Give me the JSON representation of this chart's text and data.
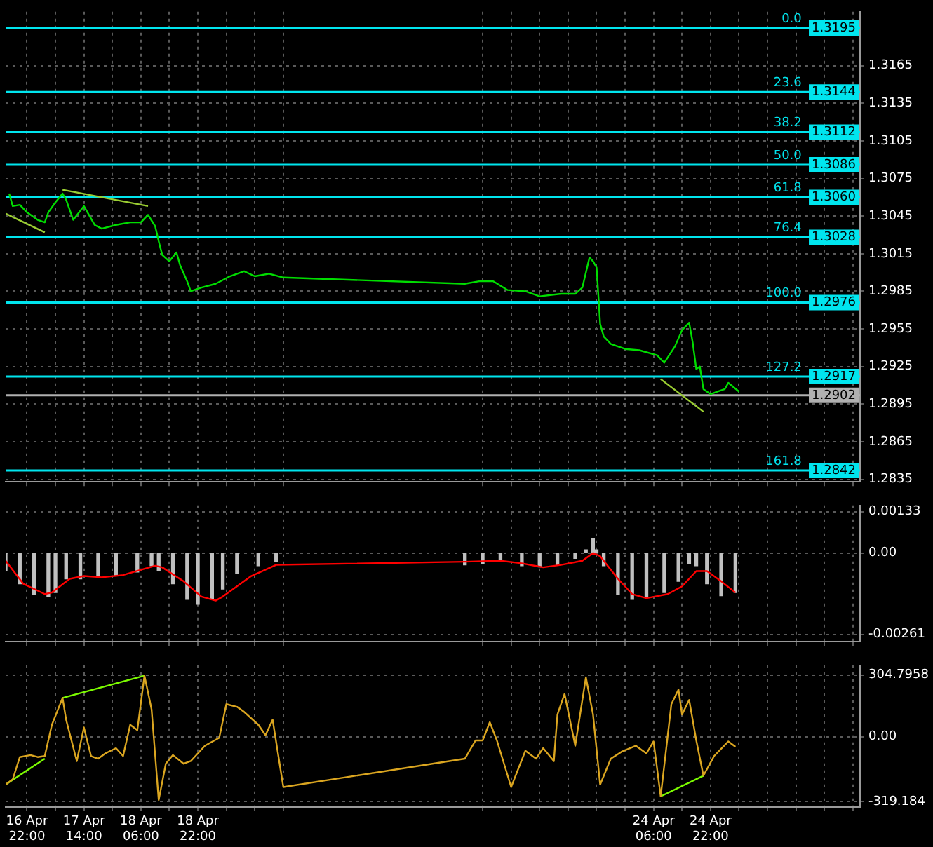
{
  "chart_data": [
    {
      "type": "line",
      "marker": "none",
      "line_style": "solid",
      "grid": true,
      "legend": false,
      "tick_labels": "y",
      "xlim": [
        "--04-16T16:00",
        "--04-26T16:00"
      ],
      "xticks": [
        {
          "value": "--04-16T22:00",
          "label": null
        },
        {
          "value": "--04-17T06:00",
          "label": null
        },
        {
          "value": "--04-17T14:00",
          "label": null
        },
        {
          "value": "--04-17T22:00",
          "label": null
        },
        {
          "value": "--04-18T06:00",
          "label": null
        },
        {
          "value": "--04-18T14:00",
          "label": null
        },
        {
          "value": "--04-18T22:00",
          "label": null
        },
        {
          "value": "--04-19T06:00",
          "label": null
        },
        {
          "value": "--04-19T14:00",
          "label": null
        },
        {
          "value": "--04-19T22:00",
          "label": null
        },
        {
          "value": "--04-22T06:00",
          "label": null
        },
        {
          "value": "--04-22T14:00",
          "label": null
        },
        {
          "value": "--04-22T22:00",
          "label": null
        },
        {
          "value": "--04-23T06:00",
          "label": null
        },
        {
          "value": "--04-23T14:00",
          "label": null
        },
        {
          "value": "--04-23T22:00",
          "label": null
        },
        {
          "value": "--04-24T06:00",
          "label": null
        },
        {
          "value": "--04-24T14:00",
          "label": null
        },
        {
          "value": "--04-24T22:00",
          "label": null
        },
        {
          "value": "--04-25T06:00",
          "label": null
        },
        {
          "value": "--04-25T14:00",
          "label": null
        },
        {
          "value": "--04-25T22:00",
          "label": null
        },
        {
          "value": "--04-26T06:00",
          "label": null
        },
        {
          "value": "--04-26T14:00",
          "label": null
        }
      ],
      "ylim": [
        1.2833,
        1.3208
      ],
      "yticks": [
        1.2835,
        1.2865,
        1.2895,
        1.2925,
        1.2955,
        1.2985,
        1.3015,
        1.3045,
        1.3075,
        1.3105,
        1.3135,
        1.3165
      ],
      "ref_lines": [
        {
          "axis": "y",
          "value": 1.3195,
          "label": "1.3195",
          "color": "#00e5ee"
        },
        {
          "axis": "y",
          "value": 1.3144,
          "label": "1.3144",
          "color": "#00e5ee"
        },
        {
          "axis": "y",
          "value": 1.3112,
          "label": "1.3112",
          "color": "#00e5ee"
        },
        {
          "axis": "y",
          "value": 1.3086,
          "label": "1.3086",
          "color": "#00e5ee"
        },
        {
          "axis": "y",
          "value": 1.306,
          "label": "1.3060",
          "color": "#00e5ee"
        },
        {
          "axis": "y",
          "value": 1.3028,
          "label": "1.3028",
          "color": "#00e5ee"
        },
        {
          "axis": "y",
          "value": 1.2976,
          "label": "1.2976",
          "color": "#00e5ee"
        },
        {
          "axis": "y",
          "value": 1.2917,
          "label": "1.2917",
          "color": "#00e5ee"
        },
        {
          "axis": "y",
          "value": 1.2842,
          "label": "1.2842",
          "color": "#00e5ee"
        },
        {
          "axis": "y",
          "value": 1.2902,
          "label": "1.2902",
          "color": "#b0b0b0"
        }
      ],
      "annotations": [
        {
          "text": "0.0",
          "x": "--04-26T00:00",
          "y": 1.3195
        },
        {
          "text": "23.6",
          "x": "--04-26T00:00",
          "y": 1.3144
        },
        {
          "text": "38.2",
          "x": "--04-26T00:00",
          "y": 1.3112
        },
        {
          "text": "50.0",
          "x": "--04-26T00:00",
          "y": 1.3086
        },
        {
          "text": "61.8",
          "x": "--04-26T00:00",
          "y": 1.306
        },
        {
          "text": "76.4",
          "x": "--04-26T00:00",
          "y": 1.3028
        },
        {
          "text": "100.0",
          "x": "--04-26T00:00",
          "y": 1.2976
        },
        {
          "text": "127.2",
          "x": "--04-26T00:00",
          "y": 1.2917
        },
        {
          "text": "161.8",
          "x": "--04-26T00:00",
          "y": 1.2842
        }
      ],
      "series": [
        {
          "color": "#00dd00",
          "x": [
            "--04-16T17:00",
            "--04-16T18:00",
            "--04-16T20:00",
            "--04-16T22:00",
            "--04-17T01:00",
            "--04-17T03:00",
            "--04-17T04:00",
            "--04-17T06:00",
            "--04-17T08:00",
            "--04-17T09:00",
            "--04-17T11:00",
            "--04-17T14:00",
            "--04-17T17:00",
            "--04-17T19:00",
            "--04-17T23:00",
            "--04-18T03:00",
            "--04-18T06:00",
            "--04-18T08:00",
            "--04-18T10:00",
            "--04-18T11:00",
            "--04-18T12:00",
            "--04-18T14:00",
            "--04-18T16:00",
            "--04-18T17:00",
            "--04-18T19:00",
            "--04-18T20:00",
            "--04-18T23:00",
            "--04-19T03:00",
            "--04-19T07:00",
            "--04-19T11:00",
            "--04-19T14:00",
            "--04-19T18:00",
            "--04-19T22:00",
            "--04-22T01:00",
            "--04-22T05:00",
            "--04-22T09:00",
            "--04-22T13:00",
            "--04-22T18:00",
            "--04-22T22:00",
            "--04-23T04:00",
            "--04-23T08:00",
            "--04-23T10:00",
            "--04-23T12:00",
            "--04-23T13:00",
            "--04-23T14:00",
            "--04-23T15:00",
            "--04-23T16:00",
            "--04-23T18:00",
            "--04-23T22:00",
            "--04-24T02:00",
            "--04-24T07:00",
            "--04-24T09:00",
            "--04-24T12:00",
            "--04-24T14:00",
            "--04-24T16:00",
            "--04-24T17:00",
            "--04-24T18:00",
            "--04-24T19:00",
            "--04-24T20:00",
            "--04-24T22:00",
            "--04-25T00:00",
            "--04-25T02:00",
            "--04-25T03:00",
            "--04-25T06:00"
          ],
          "values": [
            1.3063,
            1.3053,
            1.3054,
            1.3048,
            1.3042,
            1.304,
            1.3048,
            1.3056,
            1.3063,
            1.3058,
            1.3042,
            1.3053,
            1.3038,
            1.3035,
            1.3038,
            1.304,
            1.304,
            1.3046,
            1.3037,
            1.3025,
            1.3014,
            1.3009,
            1.3016,
            1.3006,
            1.2993,
            1.2985,
            1.2988,
            1.2991,
            1.2997,
            1.3001,
            1.2997,
            1.2999,
            1.2996,
            1.2991,
            1.2993,
            1.2993,
            1.2986,
            1.2985,
            1.2981,
            1.2983,
            1.2983,
            1.2988,
            1.3012,
            1.3009,
            1.3004,
            1.2959,
            1.2949,
            1.2943,
            1.2939,
            1.2938,
            1.2934,
            1.2928,
            1.2941,
            1.2954,
            1.296,
            1.2944,
            1.2923,
            1.2925,
            1.2907,
            1.2903,
            1.2905,
            1.2907,
            1.2912,
            1.2905
          ]
        },
        {
          "type": "line",
          "color": "#9acd32",
          "x": [
            "--04-16T16:00",
            "--04-17T03:00"
          ],
          "values": [
            1.3047,
            1.3032
          ]
        },
        {
          "type": "line",
          "color": "#9acd32",
          "x": [
            "--04-17T08:00",
            "--04-18T08:00"
          ],
          "values": [
            1.3066,
            1.3053
          ]
        },
        {
          "type": "line",
          "color": "#9acd32",
          "x": [
            "--04-24T08:00",
            "--04-24T20:00"
          ],
          "values": [
            1.2915,
            1.2889
          ]
        }
      ]
    },
    {
      "type": "bar",
      "marker": "none",
      "line_style": "solid",
      "grid": true,
      "legend": false,
      "tick_labels": "y",
      "xlim": [
        "--04-16T16:00",
        "--04-26T16:00"
      ],
      "xticks": [
        {
          "value": "--04-16T22:00",
          "label": null
        },
        {
          "value": "--04-17T06:00",
          "label": null
        },
        {
          "value": "--04-17T14:00",
          "label": null
        },
        {
          "value": "--04-17T22:00",
          "label": null
        },
        {
          "value": "--04-18T06:00",
          "label": null
        },
        {
          "value": "--04-18T14:00",
          "label": null
        },
        {
          "value": "--04-18T22:00",
          "label": null
        },
        {
          "value": "--04-19T06:00",
          "label": null
        },
        {
          "value": "--04-19T14:00",
          "label": null
        },
        {
          "value": "--04-19T22:00",
          "label": null
        },
        {
          "value": "--04-22T06:00",
          "label": null
        },
        {
          "value": "--04-22T14:00",
          "label": null
        },
        {
          "value": "--04-22T22:00",
          "label": null
        },
        {
          "value": "--04-23T06:00",
          "label": null
        },
        {
          "value": "--04-23T14:00",
          "label": null
        },
        {
          "value": "--04-23T22:00",
          "label": null
        },
        {
          "value": "--04-24T06:00",
          "label": null
        },
        {
          "value": "--04-24T14:00",
          "label": null
        },
        {
          "value": "--04-24T22:00",
          "label": null
        },
        {
          "value": "--04-25T06:00",
          "label": null
        },
        {
          "value": "--04-25T14:00",
          "label": null
        },
        {
          "value": "--04-25T22:00",
          "label": null
        },
        {
          "value": "--04-26T06:00",
          "label": null
        },
        {
          "value": "--04-26T14:00",
          "label": null
        }
      ],
      "ylim": [
        -0.00285,
        0.00153
      ],
      "yticks": [
        {
          "value": -0.00261,
          "label": "-0.00261"
        },
        {
          "value": 0,
          "label": "0.00"
        },
        {
          "value": 0.00133,
          "label": "0.00133"
        }
      ],
      "series": [
        {
          "color": "#c0c0c0",
          "x": [
            "--04-16T16:00",
            "--04-16T20:00",
            "--04-17T00:00",
            "--04-17T04:00",
            "--04-17T06:00",
            "--04-17T09:00",
            "--04-17T13:00",
            "--04-17T18:00",
            "--04-17T23:00",
            "--04-18T05:00",
            "--04-18T09:00",
            "--04-18T11:00",
            "--04-18T15:00",
            "--04-18T19:00",
            "--04-18T22:00",
            "--04-19T02:00",
            "--04-19T05:00",
            "--04-19T09:00",
            "--04-19T15:00",
            "--04-19T20:00",
            "--04-22T01:00",
            "--04-22T06:00",
            "--04-22T11:00",
            "--04-22T17:00",
            "--04-22T22:00",
            "--04-23T03:00",
            "--04-23T08:00",
            "--04-23T11:00",
            "--04-23T13:00",
            "--04-23T14:00",
            "--04-23T16:00",
            "--04-23T20:00",
            "--04-24T00:00",
            "--04-24T04:00",
            "--04-24T09:00",
            "--04-24T13:00",
            "--04-24T16:00",
            "--04-24T18:00",
            "--04-24T21:00",
            "--04-25T01:00",
            "--04-25T05:00"
          ],
          "values": [
            -0.00058,
            -0.00099,
            -0.00132,
            -0.0014,
            -0.00127,
            -0.00083,
            -0.00083,
            -0.00074,
            -0.00071,
            -0.00061,
            -0.00041,
            -0.00058,
            -0.00099,
            -0.00149,
            -0.00165,
            -0.00149,
            -0.00116,
            -0.00066,
            -0.00041,
            -0.00028,
            -0.00038,
            -0.00033,
            -0.00025,
            -0.00041,
            -0.00045,
            -0.00038,
            -0.00017,
            0.0001,
            0.00045,
            0.0001,
            -0.00041,
            -0.00132,
            -0.00149,
            -0.0014,
            -0.00127,
            -0.00091,
            -0.00033,
            -0.00041,
            -0.00099,
            -0.00137,
            -0.00127
          ]
        },
        {
          "type": "line",
          "color": "#ff0000",
          "x": [
            "--04-16T16:00",
            "--04-16T21:00",
            "--04-17T03:00",
            "--04-17T05:00",
            "--04-17T10:00",
            "--04-17T14:00",
            "--04-17T19:00",
            "--04-18T01:00",
            "--04-18T06:00",
            "--04-18T10:00",
            "--04-18T12:00",
            "--04-18T18:00",
            "--04-18T23:00",
            "--04-19T03:00",
            "--04-19T05:00",
            "--04-19T13:00",
            "--04-19T20:00",
            "--04-22T01:00",
            "--04-22T11:00",
            "--04-22T17:00",
            "--04-22T23:00",
            "--04-23T04:00",
            "--04-23T10:00",
            "--04-23T13:00",
            "--04-23T15:00",
            "--04-23T20:00",
            "--04-24T00:00",
            "--04-24T04:00",
            "--04-24T10:00",
            "--04-24T14:00",
            "--04-24T18:00",
            "--04-24T21:00",
            "--04-25T01:00",
            "--04-25T05:00"
          ],
          "values": [
            -0.00025,
            -0.00099,
            -0.00132,
            -0.00127,
            -0.00083,
            -0.00074,
            -0.00078,
            -0.00071,
            -0.00054,
            -0.00041,
            -0.00046,
            -0.00091,
            -0.0014,
            -0.00153,
            -0.0014,
            -0.00074,
            -0.00038,
            -0.00028,
            -0.00025,
            -0.00033,
            -0.00046,
            -0.00038,
            -0.00025,
            0,
            -0.0001,
            -0.00083,
            -0.00132,
            -0.00145,
            -0.00132,
            -0.00107,
            -0.00058,
            -0.00058,
            -0.00091,
            -0.00127
          ]
        }
      ]
    },
    {
      "type": "line",
      "marker": "none",
      "line_style": "solid",
      "grid": true,
      "legend": false,
      "xlim": [
        "--04-16T16:00",
        "--04-26T16:00"
      ],
      "xticks": [
        {
          "value": "--04-16T22:00",
          "label": "16 Apr 22:00"
        },
        {
          "value": "--04-17T06:00",
          "label": null
        },
        {
          "value": "--04-17T14:00",
          "label": "17 Apr 14:00"
        },
        {
          "value": "--04-17T22:00",
          "label": null
        },
        {
          "value": "--04-18T06:00",
          "label": "18 Apr 06:00"
        },
        {
          "value": "--04-18T14:00",
          "label": null
        },
        {
          "value": "--04-18T22:00",
          "label": "18 Apr 22:00"
        },
        {
          "value": "--04-19T06:00",
          "label": null
        },
        {
          "value": "--04-19T14:00",
          "label": null
        },
        {
          "value": "--04-19T22:00",
          "label": null
        },
        {
          "value": "--04-22T06:00",
          "label": null
        },
        {
          "value": "--04-22T14:00",
          "label": null
        },
        {
          "value": "--04-22T22:00",
          "label": null
        },
        {
          "value": "--04-23T06:00",
          "label": null
        },
        {
          "value": "--04-23T14:00",
          "label": null
        },
        {
          "value": "--04-23T22:00",
          "label": null
        },
        {
          "value": "--04-24T06:00",
          "label": "24 Apr 06:00"
        },
        {
          "value": "--04-24T14:00",
          "label": null
        },
        {
          "value": "--04-24T22:00",
          "label": "24 Apr 22:00"
        },
        {
          "value": "--04-25T06:00",
          "label": null
        },
        {
          "value": "--04-25T14:00",
          "label": null
        },
        {
          "value": "--04-25T22:00",
          "label": null
        },
        {
          "value": "--04-26T06:00",
          "label": null
        },
        {
          "value": "--04-26T14:00",
          "label": null
        }
      ],
      "ylim": [
        -346,
        353
      ],
      "yticks": [
        {
          "value": -319.184,
          "label": "-319.184"
        },
        {
          "value": 0,
          "label": "0.00"
        },
        {
          "value": 304.7958,
          "label": "304.7958"
        }
      ],
      "series": [
        {
          "color": "#daa520",
          "x": [
            "--04-16T16:00",
            "--04-16T18:00",
            "--04-16T20:00",
            "--04-16T23:00",
            "--04-17T01:00",
            "--04-17T03:00",
            "--04-17T05:00",
            "--04-17T08:00",
            "--04-17T09:00",
            "--04-17T12:00",
            "--04-17T14:00",
            "--04-17T16:00",
            "--04-17T18:00",
            "--04-17T20:00",
            "--04-17T23:00",
            "--04-18T01:00",
            "--04-18T03:00",
            "--04-18T05:00",
            "--04-18T07:00",
            "--04-18T09:00",
            "--04-18T11:00",
            "--04-18T13:00",
            "--04-18T15:00",
            "--04-18T18:00",
            "--04-18T20:00",
            "--04-19T00:00",
            "--04-19T04:00",
            "--04-19T06:00",
            "--04-19T09:00",
            "--04-19T11:00",
            "--04-19T15:00",
            "--04-19T17:00",
            "--04-19T19:00",
            "--04-19T22:00",
            "--04-22T01:00",
            "--04-22T04:00",
            "--04-22T06:00",
            "--04-22T08:00",
            "--04-22T10:00",
            "--04-22T14:00",
            "--04-22T18:00",
            "--04-22T21:00",
            "--04-22T23:00",
            "--04-23T02:00",
            "--04-23T03:00",
            "--04-23T05:00",
            "--04-23T08:00",
            "--04-23T11:00",
            "--04-23T13:00",
            "--04-23T15:00",
            "--04-23T18:00",
            "--04-23T21:00",
            "--04-24T01:00",
            "--04-24T04:00",
            "--04-24T06:00",
            "--04-24T08:00",
            "--04-24T11:00",
            "--04-24T13:00",
            "--04-24T14:00",
            "--04-24T16:00",
            "--04-24T18:00",
            "--04-24T20:00",
            "--04-24T23:00",
            "--04-25T03:00",
            "--04-25T05:00"
          ],
          "values": [
            -236,
            -210,
            -100,
            -90,
            -100,
            -95,
            59,
            192,
            84,
            -120,
            46,
            -95,
            -108,
            -82,
            -56,
            -95,
            59,
            33,
            302,
            136,
            -312,
            -133,
            -90,
            -133,
            -120,
            -44,
            -5,
            161,
            148,
            123,
            59,
            8,
            84,
            -248,
            -108,
            -18,
            -18,
            72,
            -18,
            -248,
            -69,
            -108,
            -56,
            -120,
            110,
            212,
            -44,
            294,
            110,
            -236,
            -108,
            -74,
            -44,
            -82,
            -23,
            -294,
            161,
            233,
            110,
            182,
            -18,
            -192,
            -95,
            -23,
            -49
          ]
        },
        {
          "type": "line",
          "color": "#7cfc00",
          "x": [
            "--04-16T16:00",
            "--04-17T03:00"
          ],
          "values": [
            -236,
            -108
          ]
        },
        {
          "type": "line",
          "color": "#7cfc00",
          "x": [
            "--04-17T08:00",
            "--04-18T07:00"
          ],
          "values": [
            192,
            302
          ]
        },
        {
          "type": "line",
          "color": "#7cfc00",
          "x": [
            "--04-24T08:00",
            "--04-24T20:00"
          ],
          "values": [
            -294,
            -192
          ]
        }
      ]
    }
  ]
}
